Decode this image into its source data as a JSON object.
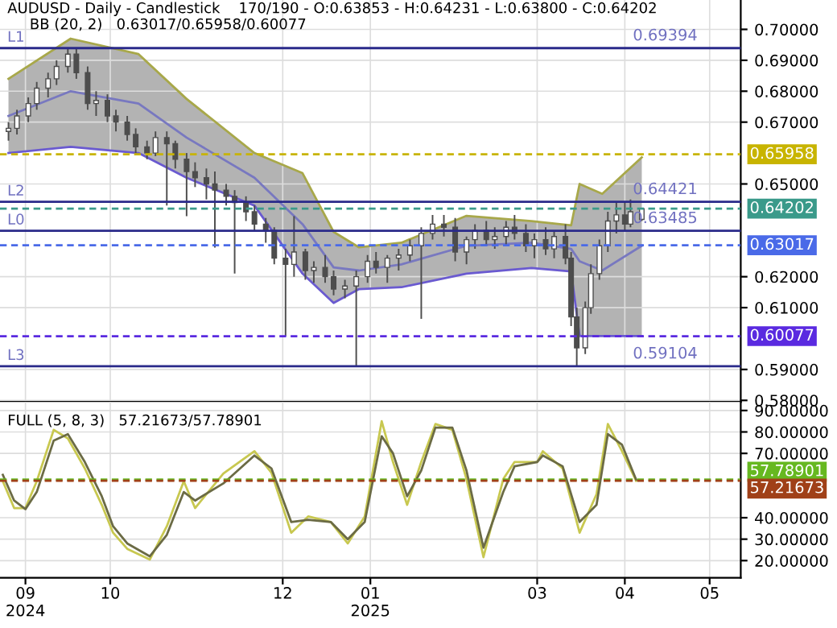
{
  "chart_data": [
    {
      "type": "candlestick",
      "title": "AUDUSD - Daily - Candlestick    170/190 - O:0.63853 - H:0.64231 - L:0.63800 - C:0.64202",
      "subtitle": "BB (20, 2)   0.63017/0.65958/0.60077",
      "xlim": [
        "2024-08-23",
        "2025-05-12"
      ],
      "xticks": [
        {
          "value": "2024-09-01",
          "label": null
        },
        {
          "value": "2024-10-01",
          "label": null
        },
        {
          "value": "2024-12-01",
          "label": null
        },
        {
          "value": "2025-01-01",
          "label": null
        },
        {
          "value": "2025-03-01",
          "label": null
        },
        {
          "value": "2025-04-01",
          "label": null
        },
        {
          "value": "2025-05-01",
          "label": null
        }
      ],
      "ylim": [
        0.5795,
        0.7095
      ],
      "yticks": [
        {
          "value": 0.58,
          "label": "0.58000"
        },
        {
          "value": 0.59,
          "label": "0.59000"
        },
        {
          "value": 0.61,
          "label": "0.61000"
        },
        {
          "value": 0.62,
          "label": "0.62000"
        },
        {
          "value": 0.65,
          "label": "0.65000"
        },
        {
          "value": 0.67,
          "label": "0.67000"
        },
        {
          "value": 0.68,
          "label": "0.68000"
        },
        {
          "value": 0.69,
          "label": "0.69000"
        },
        {
          "value": 0.7,
          "label": "0.70000"
        }
      ],
      "tick_labels": "y",
      "grid": true,
      "series": [
        {
          "type": "candlestick",
          "color": "#4d4d4d",
          "x": [
            "2024-08-26",
            "2024-08-29",
            "2024-09-02",
            "2024-09-05",
            "2024-09-09",
            "2024-09-12",
            "2024-09-16",
            "2024-09-19",
            "2024-09-23",
            "2024-09-26",
            "2024-09-30",
            "2024-10-03",
            "2024-10-07",
            "2024-10-10",
            "2024-10-14",
            "2024-10-17",
            "2024-10-21",
            "2024-10-24",
            "2024-10-28",
            "2024-10-31",
            "2024-11-04",
            "2024-11-07",
            "2024-11-11",
            "2024-11-14",
            "2024-11-18",
            "2024-11-21",
            "2024-11-25",
            "2024-11-28",
            "2024-12-02",
            "2024-12-05",
            "2024-12-09",
            "2024-12-12",
            "2024-12-16",
            "2024-12-19",
            "2024-12-23",
            "2024-12-27",
            "2024-12-31",
            "2025-01-03",
            "2025-01-07",
            "2025-01-11",
            "2025-01-15",
            "2025-01-19",
            "2025-01-23",
            "2025-01-27",
            "2025-01-31",
            "2025-02-04",
            "2025-02-07",
            "2025-02-11",
            "2025-02-14",
            "2025-02-18",
            "2025-02-21",
            "2025-02-25",
            "2025-02-28",
            "2025-03-04",
            "2025-03-07",
            "2025-03-11",
            "2025-03-13",
            "2025-03-15",
            "2025-03-18",
            "2025-03-20",
            "2025-03-23",
            "2025-03-26",
            "2025-03-29",
            "2025-04-01",
            "2025-04-03",
            "2025-04-07"
          ],
          "ohlc": [
            [
              0.667,
              0.67,
              0.664,
              0.668
            ],
            [
              0.668,
              0.674,
              0.666,
              0.672
            ],
            [
              0.672,
              0.678,
              0.67,
              0.676
            ],
            [
              0.676,
              0.683,
              0.674,
              0.681
            ],
            [
              0.681,
              0.686,
              0.678,
              0.684
            ],
            [
              0.684,
              0.69,
              0.682,
              0.688
            ],
            [
              0.688,
              0.694,
              0.686,
              0.692
            ],
            [
              0.692,
              0.694,
              0.684,
              0.686
            ],
            [
              0.686,
              0.688,
              0.674,
              0.676
            ],
            [
              0.676,
              0.68,
              0.672,
              0.677
            ],
            [
              0.677,
              0.679,
              0.67,
              0.672
            ],
            [
              0.672,
              0.674,
              0.667,
              0.67
            ],
            [
              0.67,
              0.672,
              0.664,
              0.666
            ],
            [
              0.666,
              0.668,
              0.66,
              0.662
            ],
            [
              0.662,
              0.664,
              0.658,
              0.66
            ],
            [
              0.66,
              0.667,
              0.659,
              0.665
            ],
            [
              0.665,
              0.667,
              0.643,
              0.663
            ],
            [
              0.663,
              0.664,
              0.655,
              0.658
            ],
            [
              0.658,
              0.66,
              0.6396,
              0.654
            ],
            [
              0.654,
              0.657,
              0.649,
              0.652
            ],
            [
              0.652,
              0.655,
              0.645,
              0.65
            ],
            [
              0.65,
              0.654,
              0.6294,
              0.648
            ],
            [
              0.648,
              0.65,
              0.643,
              0.646
            ],
            [
              0.646,
              0.648,
              0.621,
              0.644
            ],
            [
              0.644,
              0.646,
              0.638,
              0.641
            ],
            [
              0.641,
              0.643,
              0.635,
              0.637
            ],
            [
              0.637,
              0.639,
              0.631,
              0.635
            ],
            [
              0.635,
              0.636,
              0.624,
              0.626
            ],
            [
              0.626,
              0.629,
              0.6008,
              0.624
            ],
            [
              0.624,
              0.6396,
              0.62,
              0.628
            ],
            [
              0.628,
              0.629,
              0.619,
              0.622
            ],
            [
              0.622,
              0.625,
              0.618,
              0.623
            ],
            [
              0.623,
              0.627,
              0.618,
              0.62
            ],
            [
              0.62,
              0.622,
              0.614,
              0.616
            ],
            [
              0.616,
              0.619,
              0.613,
              0.617
            ],
            [
              0.617,
              0.622,
              0.591,
              0.62
            ],
            [
              0.62,
              0.627,
              0.618,
              0.625
            ],
            [
              0.625,
              0.628,
              0.621,
              0.623
            ],
            [
              0.623,
              0.627,
              0.618,
              0.626
            ],
            [
              0.626,
              0.629,
              0.622,
              0.627
            ],
            [
              0.627,
              0.632,
              0.625,
              0.63
            ],
            [
              0.63,
              0.636,
              0.6064,
              0.634
            ],
            [
              0.634,
              0.64,
              0.632,
              0.637
            ],
            [
              0.637,
              0.64,
              0.633,
              0.636
            ],
            [
              0.636,
              0.639,
              0.625,
              0.628
            ],
            [
              0.628,
              0.633,
              0.624,
              0.632
            ],
            [
              0.632,
              0.637,
              0.629,
              0.635
            ],
            [
              0.635,
              0.638,
              0.63,
              0.632
            ],
            [
              0.632,
              0.636,
              0.629,
              0.633
            ],
            [
              0.633,
              0.638,
              0.63,
              0.636
            ],
            [
              0.636,
              0.64,
              0.632,
              0.634
            ],
            [
              0.634,
              0.637,
              0.628,
              0.63
            ],
            [
              0.63,
              0.634,
              0.626,
              0.632
            ],
            [
              0.632,
              0.636,
              0.627,
              0.629
            ],
            [
              0.629,
              0.635,
              0.626,
              0.633
            ],
            [
              0.633,
              0.637,
              0.624,
              0.626
            ],
            [
              0.626,
              0.628,
              0.604,
              0.607
            ],
            [
              0.607,
              0.61,
              0.591,
              0.597
            ],
            [
              0.597,
              0.612,
              0.595,
              0.61
            ],
            [
              0.61,
              0.624,
              0.608,
              0.621
            ],
            [
              0.621,
              0.632,
              0.619,
              0.63
            ],
            [
              0.63,
              0.641,
              0.628,
              0.638
            ],
            [
              0.638,
              0.644,
              0.634,
              0.64
            ],
            [
              0.64,
              0.644,
              0.635,
              0.637
            ],
            [
              0.637,
              0.645,
              0.636,
              0.641
            ],
            [
              0.63853,
              0.64231,
              0.638,
              0.64202
            ]
          ]
        },
        {
          "type": "line",
          "color": "#7878c0",
          "x": [
            "2024-08-26",
            "2024-09-17",
            "2024-10-11",
            "2024-10-28",
            "2024-11-21",
            "2024-12-08",
            "2024-12-19",
            "2024-12-28",
            "2025-01-12",
            "2025-02-04",
            "2025-02-27",
            "2025-03-13",
            "2025-03-16",
            "2025-03-24",
            "2025-04-07"
          ],
          "values": [
            0.672,
            0.68,
            0.676,
            0.665,
            0.652,
            0.637,
            0.623,
            0.622,
            0.624,
            0.63,
            0.631,
            0.629,
            0.625,
            0.622,
            0.63
          ],
          "lower": [
            0.66,
            0.662,
            0.66,
            0.652,
            0.643,
            0.621,
            0.6115,
            0.616,
            0.6166,
            0.621,
            0.6228,
            0.6217,
            0.6008,
            0.6008,
            0.6008
          ],
          "upper": [
            0.684,
            0.697,
            0.692,
            0.6775,
            0.66,
            0.6535,
            0.6345,
            0.6295,
            0.631,
            0.6397,
            0.638,
            0.6366,
            0.65,
            0.6468,
            0.6586
          ]
        },
        {
          "type": "line",
          "color": "#a8a84a",
          "x": [
            "2024-08-26",
            "2024-09-17",
            "2024-10-11",
            "2024-10-28",
            "2024-11-21",
            "2024-12-08",
            "2024-12-19",
            "2024-12-28",
            "2025-01-12",
            "2025-02-04",
            "2025-02-27",
            "2025-03-13",
            "2025-03-16",
            "2025-03-24",
            "2025-04-07"
          ],
          "values": [
            0.684,
            0.697,
            0.692,
            0.6775,
            0.66,
            0.6535,
            0.6345,
            0.6295,
            0.631,
            0.6397,
            0.638,
            0.6366,
            0.65,
            0.6468,
            0.6586
          ]
        },
        {
          "type": "line",
          "color": "#6a5ad0",
          "x": [
            "2024-08-26",
            "2024-09-17",
            "2024-10-11",
            "2024-10-28",
            "2024-11-21",
            "2024-12-08",
            "2024-12-19",
            "2024-12-28",
            "2025-01-12",
            "2025-02-04",
            "2025-02-27",
            "2025-03-13",
            "2025-03-16",
            "2025-03-24",
            "2025-04-07"
          ],
          "values": [
            0.66,
            0.662,
            0.66,
            0.652,
            0.643,
            0.621,
            0.6115,
            0.616,
            0.6166,
            0.621,
            0.6228,
            0.6217,
            0.6008,
            0.6008,
            0.6008
          ]
        }
      ],
      "ref_lines": [
        {
          "axis": "y",
          "value": 0.69394,
          "label": "0.69394",
          "color": "#2a2a8a",
          "line_style": "solid"
        },
        {
          "axis": "y",
          "value": 0.64421,
          "label": "0.64421",
          "color": "#2a2a8a",
          "line_style": "solid"
        },
        {
          "axis": "y",
          "value": 0.63485,
          "label": "0.63485",
          "color": "#2a2a8a",
          "line_style": "solid"
        },
        {
          "axis": "y",
          "value": 0.59104,
          "label": "0.59104",
          "color": "#2a2a8a",
          "line_style": "solid"
        },
        {
          "axis": "y",
          "value": 0.65958,
          "label": "0.65958",
          "color": "#c8b400",
          "line_style": "dashed"
        },
        {
          "axis": "y",
          "value": 0.64202,
          "label": "0.64202",
          "color": "#3a9a8a",
          "line_style": "dashed"
        },
        {
          "axis": "y",
          "value": 0.63017,
          "label": "0.63017",
          "color": "#4a6ae8",
          "line_style": "dashed"
        },
        {
          "axis": "y",
          "value": 0.60077,
          "label": "0.60077",
          "color": "#5a2ae0",
          "line_style": "dashed"
        }
      ],
      "annotations": [
        {
          "text": "L1",
          "x": "2024-08-24",
          "y": 0.69394
        },
        {
          "text": "L2",
          "x": "2024-08-24",
          "y": 0.64421
        },
        {
          "text": "L0",
          "x": "2024-08-24",
          "y": 0.63485
        },
        {
          "text": "L3",
          "x": "2024-08-24",
          "y": 0.59104
        }
      ]
    },
    {
      "type": "line",
      "title": "FULL (5, 8, 3)   57.21673/57.78901",
      "xlim": [
        "2024-08-23",
        "2025-05-12"
      ],
      "xticks": [
        {
          "value": "2024-09-01",
          "label": "09\n2024"
        },
        {
          "value": "2024-10-01",
          "label": "10"
        },
        {
          "value": "2024-12-01",
          "label": "12"
        },
        {
          "value": "2025-01-01",
          "label": "01\n2025"
        },
        {
          "value": "2025-03-01",
          "label": "03"
        },
        {
          "value": "2025-04-01",
          "label": "04"
        },
        {
          "value": "2025-05-01",
          "label": "05"
        }
      ],
      "ylim": [
        12,
        94
      ],
      "yticks": [
        {
          "value": 20,
          "label": "20.00000"
        },
        {
          "value": 30,
          "label": "30.00000"
        },
        {
          "value": 40,
          "label": "40.00000"
        },
        {
          "value": 70,
          "label": "70.00000"
        },
        {
          "value": 80,
          "label": "80.00000"
        },
        {
          "value": 90,
          "label": "90.00000"
        }
      ],
      "grid": true,
      "x": [
        "2024-08-24",
        "2024-08-28",
        "2024-09-01",
        "2024-09-05",
        "2024-09-11",
        "2024-09-16",
        "2024-09-22",
        "2024-09-28",
        "2024-10-02",
        "2024-10-07",
        "2024-10-15",
        "2024-10-21",
        "2024-10-27",
        "2024-10-31",
        "2024-11-10",
        "2024-11-21",
        "2024-11-27",
        "2024-12-04",
        "2024-12-10",
        "2024-12-18",
        "2024-12-24",
        "2024-12-30",
        "2025-01-05",
        "2025-01-09",
        "2025-01-14",
        "2025-01-19",
        "2025-01-24",
        "2025-01-30",
        "2025-02-04",
        "2025-02-10",
        "2025-02-17",
        "2025-02-21",
        "2025-03-01",
        "2025-03-03",
        "2025-03-10",
        "2025-03-16",
        "2025-03-22",
        "2025-03-26",
        "2025-03-31",
        "2025-04-05"
      ],
      "series": [
        {
          "color": "#c8c850",
          "values": [
            57,
            44.5,
            44.5,
            57,
            81,
            77,
            63,
            46,
            33,
            25.5,
            20.5,
            36,
            57,
            44.5,
            60.6,
            71,
            61,
            33,
            40.6,
            38,
            28,
            40.6,
            85,
            66,
            46,
            66,
            83.7,
            81,
            58,
            21.6,
            58,
            66,
            66,
            71,
            63,
            33,
            51,
            83.7,
            71,
            57.2
          ]
        },
        {
          "color": "#6b6b45",
          "values": [
            60,
            48,
            44,
            52,
            76,
            79,
            66,
            50,
            36,
            28,
            22,
            32,
            52,
            48,
            56,
            69,
            63,
            38,
            39,
            38,
            30,
            38,
            78,
            70,
            50,
            62,
            82,
            82,
            62,
            26,
            52,
            64,
            66,
            69,
            64,
            38,
            46,
            79,
            74,
            57.8
          ]
        }
      ],
      "ref_lines": [
        {
          "axis": "y",
          "value": 57.78901,
          "label": "57.78901",
          "color": "#66b820",
          "line_style": "dashed"
        },
        {
          "axis": "y",
          "value": 57.21673,
          "label": "57.21673",
          "color": "#a04018",
          "line_style": "dashed"
        }
      ]
    }
  ]
}
